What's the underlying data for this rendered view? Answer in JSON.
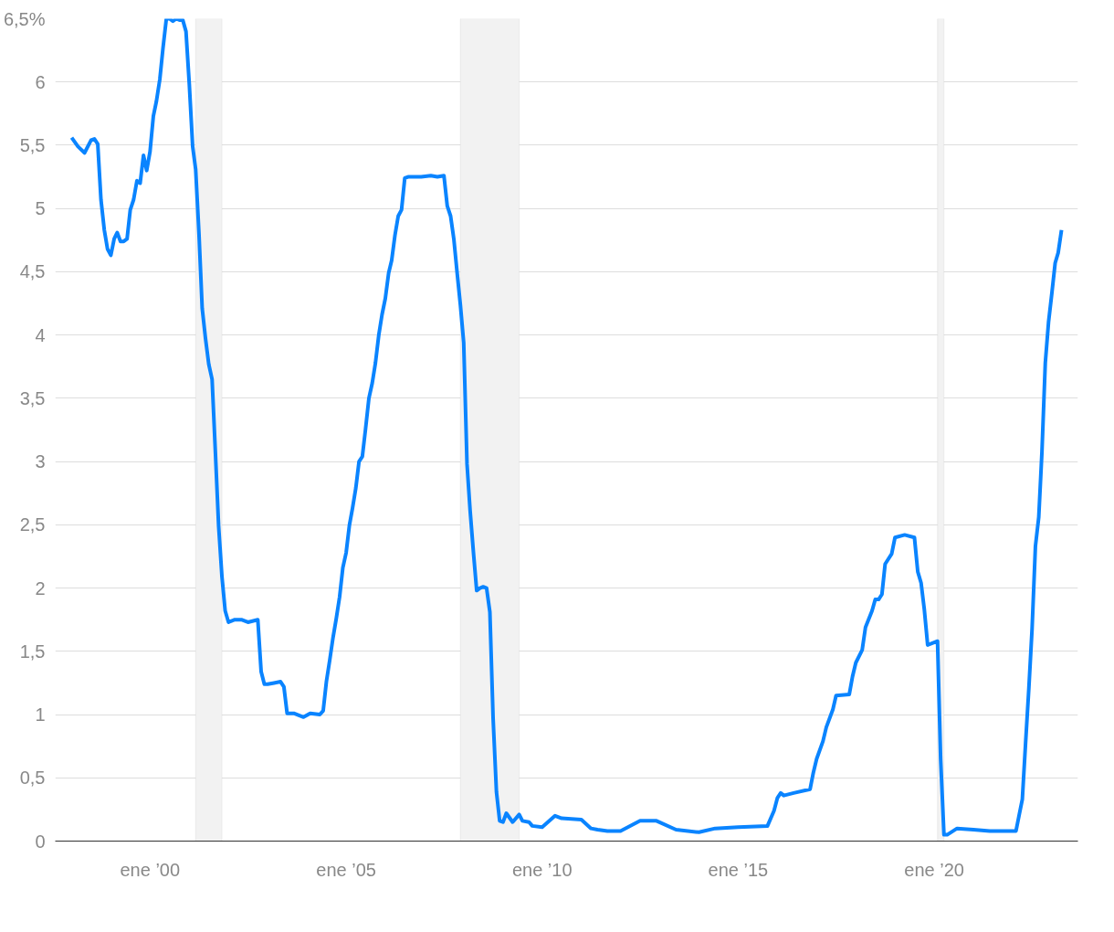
{
  "chart_data": {
    "type": "line",
    "x": [
      "1998-01",
      "1998-03",
      "1998-05",
      "1998-07",
      "1998-08",
      "1998-09",
      "1998-10",
      "1998-11",
      "1998-12",
      "1999-01",
      "1999-02",
      "1999-03",
      "1999-04",
      "1999-05",
      "1999-06",
      "1999-07",
      "1999-08",
      "1999-09",
      "1999-10",
      "1999-11",
      "1999-12",
      "2000-01",
      "2000-02",
      "2000-03",
      "2000-04",
      "2000-05",
      "2000-06",
      "2000-07",
      "2000-08",
      "2000-09",
      "2000-10",
      "2000-11",
      "2000-12",
      "2001-01",
      "2001-02",
      "2001-03",
      "2001-04",
      "2001-05",
      "2001-06",
      "2001-07",
      "2001-08",
      "2001-09",
      "2001-10",
      "2001-11",
      "2001-12",
      "2002-01",
      "2002-03",
      "2002-05",
      "2002-07",
      "2002-10",
      "2002-11",
      "2002-12",
      "2003-01",
      "2003-03",
      "2003-05",
      "2003-06",
      "2003-07",
      "2003-09",
      "2003-12",
      "2004-02",
      "2004-05",
      "2004-06",
      "2004-07",
      "2004-08",
      "2004-09",
      "2004-10",
      "2004-11",
      "2004-12",
      "2005-01",
      "2005-02",
      "2005-03",
      "2005-04",
      "2005-05",
      "2005-06",
      "2005-07",
      "2005-08",
      "2005-09",
      "2005-10",
      "2005-11",
      "2005-12",
      "2006-01",
      "2006-02",
      "2006-03",
      "2006-04",
      "2006-05",
      "2006-06",
      "2006-07",
      "2006-08",
      "2006-12",
      "2007-03",
      "2007-05",
      "2007-07",
      "2007-08",
      "2007-09",
      "2007-10",
      "2007-11",
      "2007-12",
      "2008-01",
      "2008-02",
      "2008-03",
      "2008-04",
      "2008-05",
      "2008-06",
      "2008-07",
      "2008-08",
      "2008-09",
      "2008-10",
      "2008-11",
      "2008-12",
      "2009-01",
      "2009-02",
      "2009-04",
      "2009-06",
      "2009-07",
      "2009-09",
      "2009-10",
      "2010-01",
      "2010-05",
      "2010-07",
      "2011-01",
      "2011-04",
      "2011-06",
      "2011-09",
      "2012-01",
      "2012-07",
      "2012-12",
      "2013-06",
      "2014-01",
      "2014-06",
      "2015-01",
      "2015-10",
      "2015-12",
      "2016-01",
      "2016-02",
      "2016-03",
      "2016-06",
      "2016-11",
      "2016-12",
      "2017-01",
      "2017-03",
      "2017-04",
      "2017-06",
      "2017-07",
      "2017-11",
      "2017-12",
      "2018-01",
      "2018-03",
      "2018-04",
      "2018-06",
      "2018-07",
      "2018-08",
      "2018-09",
      "2018-10",
      "2018-12",
      "2019-01",
      "2019-04",
      "2019-07",
      "2019-08",
      "2019-09",
      "2019-10",
      "2019-11",
      "2020-02",
      "2020-03",
      "2020-04",
      "2020-05",
      "2020-08",
      "2021-01",
      "2021-06",
      "2021-09",
      "2021-12",
      "2022-02",
      "2022-03",
      "2022-04",
      "2022-05",
      "2022-06",
      "2022-07",
      "2022-08",
      "2022-09",
      "2022-10",
      "2022-11",
      "2022-12",
      "2023-01",
      "2023-02",
      "2023-03",
      "2023-04"
    ],
    "series": [
      {
        "color": "#0a84ff",
        "values": [
          5.56,
          5.49,
          5.44,
          5.54,
          5.55,
          5.51,
          5.07,
          4.83,
          4.68,
          4.63,
          4.76,
          4.81,
          4.74,
          4.74,
          4.76,
          4.99,
          5.07,
          5.22,
          5.2,
          5.42,
          5.3,
          5.45,
          5.73,
          5.85,
          6.02,
          6.27,
          6.5,
          6.5,
          6.48,
          6.5,
          6.49,
          6.49,
          6.4,
          5.98,
          5.49,
          5.31,
          4.8,
          4.21,
          3.97,
          3.77,
          3.65,
          3.07,
          2.49,
          2.09,
          1.82,
          1.73,
          1.75,
          1.75,
          1.73,
          1.75,
          1.34,
          1.24,
          1.24,
          1.25,
          1.26,
          1.22,
          1.01,
          1.01,
          0.98,
          1.01,
          1.0,
          1.03,
          1.26,
          1.43,
          1.61,
          1.76,
          1.93,
          2.16,
          2.28,
          2.5,
          2.63,
          2.79,
          3.0,
          3.04,
          3.26,
          3.5,
          3.62,
          3.78,
          4.0,
          4.16,
          4.29,
          4.49,
          4.59,
          4.79,
          4.94,
          4.99,
          5.24,
          5.25,
          5.25,
          5.26,
          5.25,
          5.26,
          5.02,
          4.94,
          4.76,
          4.49,
          4.24,
          3.94,
          2.98,
          2.61,
          2.28,
          1.98,
          2.0,
          2.01,
          2.0,
          1.81,
          0.97,
          0.39,
          0.16,
          0.15,
          0.22,
          0.15,
          0.21,
          0.16,
          0.15,
          0.12,
          0.11,
          0.2,
          0.18,
          0.17,
          0.1,
          0.09,
          0.08,
          0.08,
          0.16,
          0.16,
          0.09,
          0.07,
          0.1,
          0.11,
          0.12,
          0.24,
          0.34,
          0.38,
          0.36,
          0.38,
          0.41,
          0.54,
          0.65,
          0.79,
          0.9,
          1.04,
          1.15,
          1.16,
          1.3,
          1.41,
          1.51,
          1.69,
          1.82,
          1.91,
          1.91,
          1.95,
          2.19,
          2.27,
          2.4,
          2.42,
          2.4,
          2.13,
          2.04,
          1.83,
          1.55,
          1.58,
          0.65,
          0.05,
          0.05,
          0.1,
          0.09,
          0.08,
          0.08,
          0.08,
          0.08,
          0.2,
          0.33,
          0.77,
          1.21,
          1.68,
          2.33,
          2.56,
          3.08,
          3.78,
          4.1,
          4.33,
          4.57,
          4.65,
          4.83
        ]
      }
    ],
    "xlim": [
      "1997-08",
      "2023-09"
    ],
    "xticks": [
      {
        "value": "2000-01",
        "label": "ene ’00"
      },
      {
        "value": "2005-01",
        "label": "ene ’05"
      },
      {
        "value": "2010-01",
        "label": "ene ’10"
      },
      {
        "value": "2015-01",
        "label": "ene ’15"
      },
      {
        "value": "2020-01",
        "label": "ene ’20"
      }
    ],
    "ylim": [
      0,
      6.5
    ],
    "yticks": [
      0,
      {
        "value": 0.5,
        "label": "0,5"
      },
      1,
      {
        "value": 1.5,
        "label": "1,5"
      },
      2,
      {
        "value": 2.5,
        "label": "2,5"
      },
      3,
      {
        "value": 3.5,
        "label": "3,5"
      },
      4,
      {
        "value": 4.5,
        "label": "4,5"
      },
      5,
      {
        "value": 5.5,
        "label": "5,5"
      },
      6,
      {
        "value": 6.5,
        "label": "6,5%"
      }
    ],
    "bands": [
      {
        "axis": "x",
        "from": "2001-03",
        "to": "2001-11",
        "color": "#f2f2f2"
      },
      {
        "axis": "x",
        "from": "2007-12",
        "to": "2009-06",
        "color": "#f2f2f2"
      },
      {
        "axis": "x",
        "from": "2020-02",
        "to": "2020-04",
        "color": "#f2f2f2"
      }
    ],
    "grid": "y",
    "line_style": "solid"
  }
}
